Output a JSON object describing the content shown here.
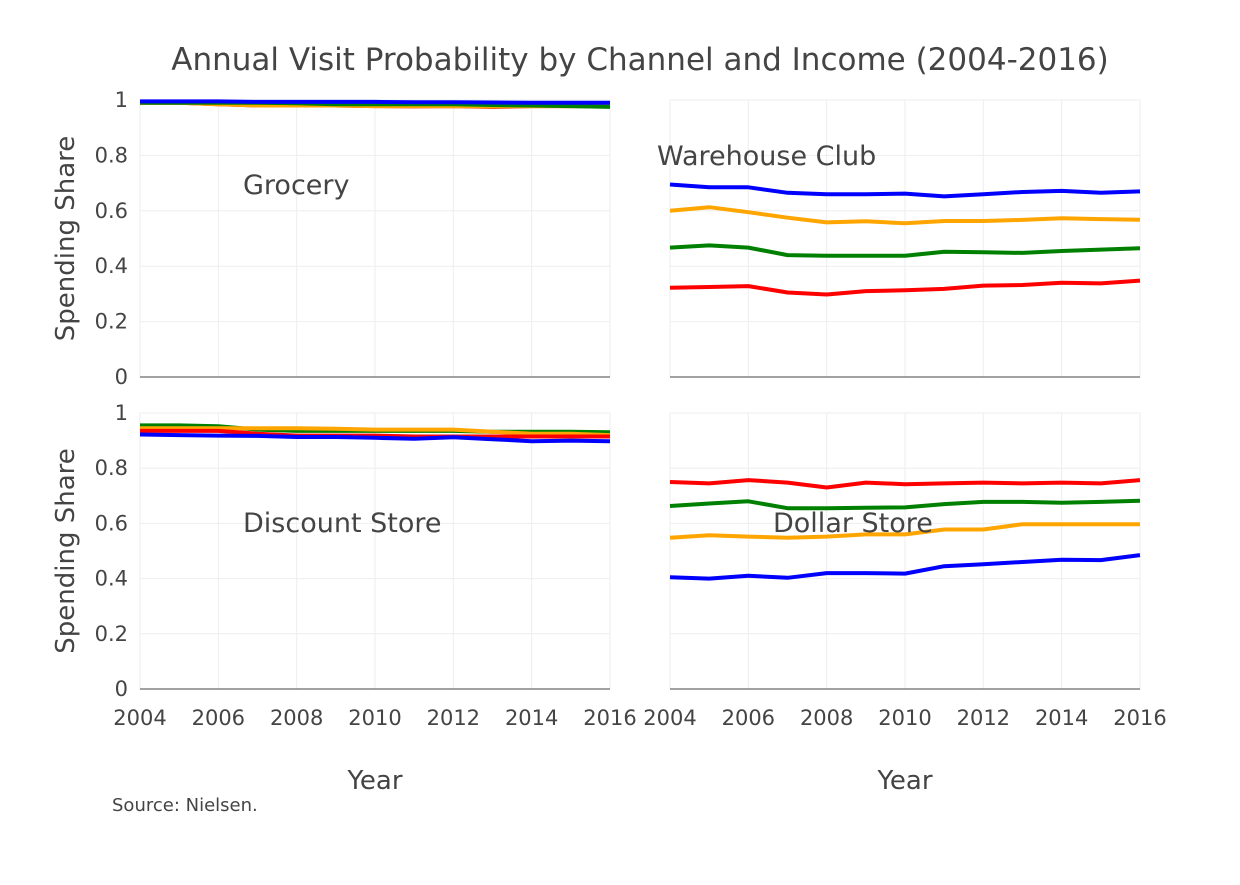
{
  "chart_data": {
    "type": "line",
    "title": "Annual Visit Probability by Channel and Income (2004-2016)",
    "xlabel": "Year",
    "ylabel": "Spending Share",
    "source": "Source: Nielsen.",
    "grid": true,
    "x": [
      2004,
      2005,
      2006,
      2007,
      2008,
      2009,
      2010,
      2011,
      2012,
      2013,
      2014,
      2015,
      2016
    ],
    "x_ticks": [
      "2004",
      "2006",
      "2008",
      "2010",
      "2012",
      "2014",
      "2016"
    ],
    "y_ticks": [
      "0",
      "0.2",
      "0.4",
      "0.6",
      "0.8",
      "1"
    ],
    "ylim": [
      0,
      1
    ],
    "xlim": [
      2004,
      2016
    ],
    "colors": {
      "red": "#ff0000",
      "orange": "#ffa500",
      "green": "#008000",
      "blue": "#0000ff"
    },
    "panels": [
      {
        "label": "Grocery",
        "series": [
          {
            "color": "red",
            "values": [
              0.99,
              0.99,
              0.985,
              0.98,
              0.98,
              0.98,
              0.978,
              0.977,
              0.978,
              0.975,
              0.978,
              0.978,
              0.978
            ]
          },
          {
            "color": "orange",
            "values": [
              0.99,
              0.99,
              0.985,
              0.98,
              0.98,
              0.98,
              0.978,
              0.978,
              0.978,
              0.977,
              0.978,
              0.978,
              0.978
            ]
          },
          {
            "color": "green",
            "values": [
              0.99,
              0.99,
              0.99,
              0.99,
              0.988,
              0.985,
              0.985,
              0.985,
              0.985,
              0.982,
              0.98,
              0.978,
              0.975
            ]
          },
          {
            "color": "blue",
            "values": [
              0.995,
              0.995,
              0.995,
              0.993,
              0.993,
              0.993,
              0.993,
              0.992,
              0.992,
              0.991,
              0.99,
              0.99,
              0.99
            ]
          }
        ]
      },
      {
        "label": "Warehouse Club",
        "series": [
          {
            "color": "blue",
            "values": [
              0.695,
              0.685,
              0.685,
              0.665,
              0.66,
              0.66,
              0.662,
              0.652,
              0.66,
              0.668,
              0.672,
              0.665,
              0.67
            ]
          },
          {
            "color": "orange",
            "values": [
              0.6,
              0.613,
              0.595,
              0.575,
              0.558,
              0.562,
              0.555,
              0.563,
              0.563,
              0.567,
              0.573,
              0.57,
              0.568
            ]
          },
          {
            "color": "green",
            "values": [
              0.467,
              0.475,
              0.467,
              0.44,
              0.438,
              0.438,
              0.438,
              0.452,
              0.45,
              0.448,
              0.455,
              0.46,
              0.465
            ]
          },
          {
            "color": "red",
            "values": [
              0.322,
              0.325,
              0.328,
              0.305,
              0.298,
              0.31,
              0.313,
              0.318,
              0.33,
              0.332,
              0.34,
              0.338,
              0.348
            ]
          }
        ]
      },
      {
        "label": "Discount Store",
        "series": [
          {
            "color": "green",
            "values": [
              0.955,
              0.955,
              0.952,
              0.94,
              0.935,
              0.935,
              0.935,
              0.935,
              0.935,
              0.932,
              0.932,
              0.932,
              0.93
            ]
          },
          {
            "color": "orange",
            "values": [
              0.945,
              0.945,
              0.945,
              0.945,
              0.945,
              0.943,
              0.94,
              0.94,
              0.94,
              0.932,
              0.925,
              0.925,
              0.92
            ]
          },
          {
            "color": "red",
            "values": [
              0.935,
              0.935,
              0.935,
              0.925,
              0.918,
              0.918,
              0.918,
              0.915,
              0.915,
              0.915,
              0.915,
              0.915,
              0.915
            ]
          },
          {
            "color": "blue",
            "values": [
              0.922,
              0.92,
              0.918,
              0.917,
              0.913,
              0.913,
              0.91,
              0.907,
              0.912,
              0.905,
              0.898,
              0.9,
              0.898
            ]
          }
        ]
      },
      {
        "label": "Dollar Store",
        "series": [
          {
            "color": "red",
            "values": [
              0.75,
              0.745,
              0.757,
              0.748,
              0.73,
              0.748,
              0.742,
              0.745,
              0.748,
              0.745,
              0.748,
              0.745,
              0.757
            ]
          },
          {
            "color": "green",
            "values": [
              0.663,
              0.672,
              0.68,
              0.655,
              0.655,
              0.657,
              0.658,
              0.67,
              0.678,
              0.678,
              0.675,
              0.678,
              0.682
            ]
          },
          {
            "color": "orange",
            "values": [
              0.548,
              0.557,
              0.552,
              0.548,
              0.552,
              0.56,
              0.56,
              0.578,
              0.578,
              0.597,
              0.597,
              0.597,
              0.597
            ]
          },
          {
            "color": "blue",
            "values": [
              0.405,
              0.4,
              0.41,
              0.403,
              0.42,
              0.42,
              0.418,
              0.445,
              0.452,
              0.46,
              0.468,
              0.467,
              0.485
            ]
          }
        ]
      }
    ]
  }
}
